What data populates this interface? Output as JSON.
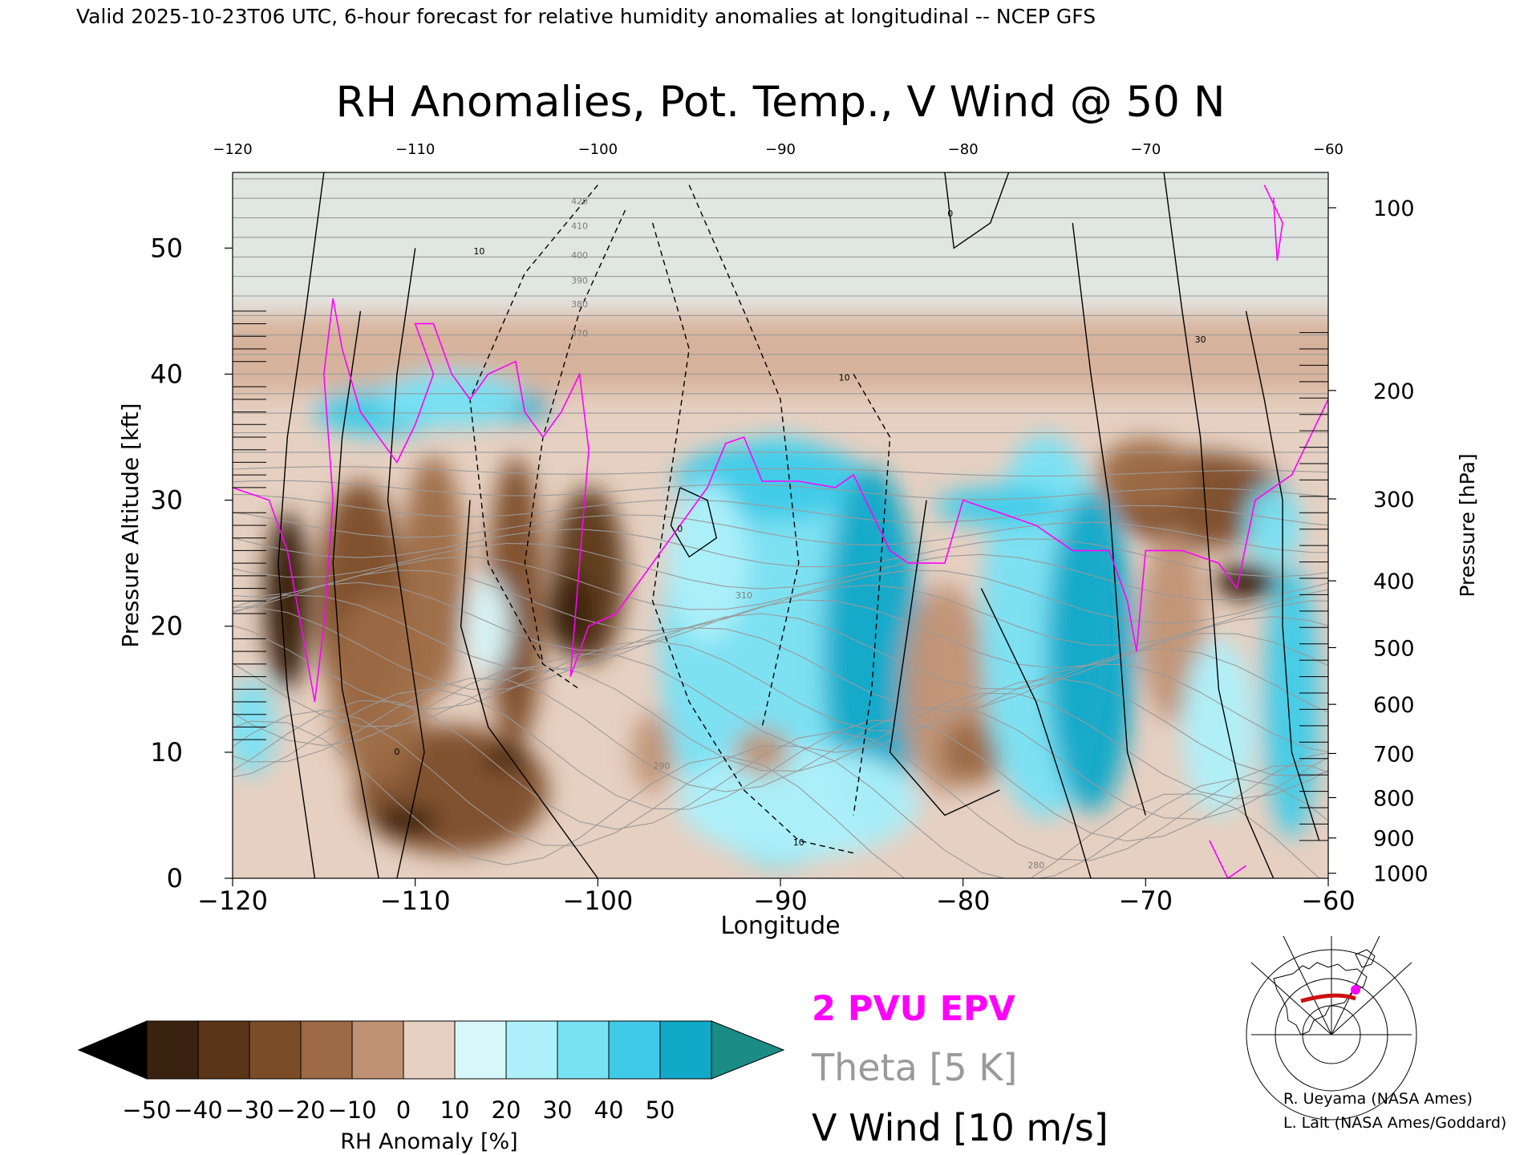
{
  "header": {
    "valid_line": "Valid 2025-10-23T06 UTC, 6-hour forecast for relative humidity anomalies at longitudinal -- NCEP GFS"
  },
  "chart_data": {
    "type": "heatmap",
    "title": "RH Anomalies, Pot. Temp., V Wind @ 50 N",
    "xlabel": "Longitude",
    "ylabel": "Pressure Altitude [kft]",
    "y2label": "Pressure [hPa]",
    "xlim": [
      -120,
      -60
    ],
    "ylim": [
      0,
      56
    ],
    "x_ticks": [
      -120,
      -110,
      -100,
      -90,
      -80,
      -70,
      -60
    ],
    "x_tick_labels": [
      "−120",
      "−110",
      "−100",
      "−90",
      "−80",
      "−70",
      "−60"
    ],
    "top_tick_labels": [
      "−120",
      "−110",
      "−100",
      "−90",
      "−80",
      "−70",
      "−60"
    ],
    "y_ticks": [
      0,
      10,
      20,
      30,
      40,
      50
    ],
    "pressure_ticks": [
      {
        "label": "100",
        "kft": 53.2
      },
      {
        "label": "200",
        "kft": 38.7
      },
      {
        "label": "300",
        "kft": 30.1
      },
      {
        "label": "400",
        "kft": 23.6
      },
      {
        "label": "500",
        "kft": 18.3
      },
      {
        "label": "600",
        "kft": 13.8
      },
      {
        "label": "700",
        "kft": 9.9
      },
      {
        "label": "800",
        "kft": 6.4
      },
      {
        "label": "900",
        "kft": 3.2
      },
      {
        "label": "1000",
        "kft": 0.4
      }
    ],
    "theta_labels": [
      {
        "label": "420",
        "lon": -101.0,
        "kft": 53.5
      },
      {
        "label": "410",
        "lon": -101.0,
        "kft": 51.5
      },
      {
        "label": "400",
        "lon": -101.0,
        "kft": 49.2
      },
      {
        "label": "390",
        "lon": -101.0,
        "kft": 47.2
      },
      {
        "label": "380",
        "lon": -101.0,
        "kft": 45.3
      },
      {
        "label": "370",
        "lon": -101.0,
        "kft": 43.0
      },
      {
        "label": "290",
        "lon": -96.5,
        "kft": 8.7
      },
      {
        "label": "310",
        "lon": -92.0,
        "kft": 22.2
      },
      {
        "label": "280",
        "lon": -76.0,
        "kft": 0.8
      }
    ],
    "vwind_labels": [
      {
        "label": "10",
        "lon": -106.5,
        "kft": 49.5
      },
      {
        "label": "10",
        "lon": -86.5,
        "kft": 39.5
      },
      {
        "label": "10",
        "lon": -89.0,
        "kft": 2.6
      },
      {
        "label": "0",
        "lon": -80.7,
        "kft": 52.5
      },
      {
        "label": "30",
        "lon": -67.0,
        "kft": 42.5
      },
      {
        "label": "0",
        "lon": -95.5,
        "kft": 27.5
      },
      {
        "label": "0",
        "lon": -111.0,
        "kft": 9.8
      }
    ],
    "legend": {
      "colorbar_label": "RH Anomaly [%]",
      "colorbar_ticks": [
        "−50",
        "−40",
        "−30",
        "−20",
        "−10",
        "0",
        "10",
        "20",
        "30",
        "40",
        "50"
      ],
      "colorbar_colors": [
        "#3a2210",
        "#5b3518",
        "#7b4c28",
        "#9c6a45",
        "#bf9275",
        "#e6d0c2",
        "#d8f7fb",
        "#aef0fa",
        "#77e2f4",
        "#3fcbe8",
        "#12a8c8"
      ],
      "under_color": "#000000",
      "over_color": "#1b8c86",
      "pvu_label": "2 PVU EPV",
      "theta_label": "Theta [5 K]",
      "wind_label": "V Wind [10 m/s]"
    },
    "colors": {
      "pvu": "#ff00ff",
      "theta": "#9a9a9a",
      "wind": "#000000",
      "positive_rh": "#3fcbe8",
      "negative_rh": "#7b4c28"
    },
    "grid": false
  },
  "inset_map": {
    "marker_color": "#ff00ff",
    "path_color": "#cc1111"
  },
  "credits": {
    "line1": "R. Ueyama (NASA Ames)",
    "line2": "L. Lait (NASA Ames/Goddard)"
  }
}
